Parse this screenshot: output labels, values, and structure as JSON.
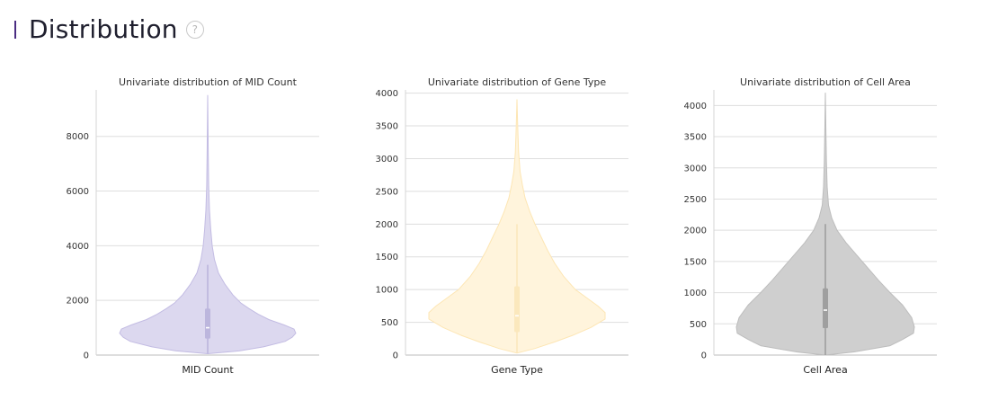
{
  "header": {
    "title": "Distribution",
    "help_glyph": "?",
    "help_icon": "question-circle-icon",
    "accent_color": "#4b2c82"
  },
  "chart_data": [
    {
      "type": "violin",
      "title": "Univariate distribution of MID Count",
      "xlabel": "MID Count",
      "category": "MID Count",
      "ylim": [
        0,
        9700
      ],
      "yticks": [
        0,
        2000,
        4000,
        6000,
        8000
      ],
      "grid": true,
      "fill": "#dcd8ef",
      "stroke": "#c3bce3",
      "box_color": "#bcb6dd",
      "median_color": "#ffffff",
      "stats": {
        "min": 50,
        "q1": 600,
        "median": 1000,
        "q3": 1700,
        "max": 9500,
        "whisker_high": 3300
      },
      "density": [
        [
          50,
          0.0
        ],
        [
          150,
          0.35
        ],
        [
          300,
          0.62
        ],
        [
          500,
          0.86
        ],
        [
          650,
          0.94
        ],
        [
          800,
          0.98
        ],
        [
          950,
          0.96
        ],
        [
          1100,
          0.85
        ],
        [
          1300,
          0.68
        ],
        [
          1500,
          0.56
        ],
        [
          1700,
          0.46
        ],
        [
          1900,
          0.37
        ],
        [
          2200,
          0.28
        ],
        [
          2600,
          0.19
        ],
        [
          3000,
          0.12
        ],
        [
          3500,
          0.075
        ],
        [
          4000,
          0.05
        ],
        [
          4600,
          0.034
        ],
        [
          5300,
          0.02
        ],
        [
          6200,
          0.011
        ],
        [
          7500,
          0.006
        ],
        [
          9500,
          0.0
        ]
      ]
    },
    {
      "type": "violin",
      "title": "Univariate distribution of Gene Type",
      "xlabel": "Gene Type",
      "category": "Gene Type",
      "ylim": [
        0,
        4050
      ],
      "yticks": [
        0,
        500,
        1000,
        1500,
        2000,
        2500,
        3000,
        3500,
        4000
      ],
      "grid": true,
      "fill": "#fff4dc",
      "stroke": "#fde6b4",
      "box_color": "#fbe8bd",
      "median_color": "#ffffff",
      "stats": {
        "min": 30,
        "q1": 350,
        "median": 600,
        "q3": 1050,
        "max": 3900,
        "whisker_high": 2000
      },
      "density": [
        [
          30,
          0.0
        ],
        [
          100,
          0.2
        ],
        [
          200,
          0.42
        ],
        [
          300,
          0.62
        ],
        [
          420,
          0.82
        ],
        [
          550,
          0.98
        ],
        [
          650,
          0.98
        ],
        [
          750,
          0.9
        ],
        [
          850,
          0.8
        ],
        [
          1000,
          0.65
        ],
        [
          1200,
          0.52
        ],
        [
          1400,
          0.42
        ],
        [
          1600,
          0.34
        ],
        [
          1800,
          0.27
        ],
        [
          2000,
          0.2
        ],
        [
          2200,
          0.14
        ],
        [
          2400,
          0.09
        ],
        [
          2600,
          0.06
        ],
        [
          2800,
          0.035
        ],
        [
          3100,
          0.018
        ],
        [
          3500,
          0.008
        ],
        [
          3900,
          0.0
        ]
      ]
    },
    {
      "type": "violin",
      "title": "Univariate distribution of Cell Area",
      "xlabel": "Cell Area",
      "category": "Cell Area",
      "ylim": [
        0,
        4250
      ],
      "yticks": [
        0,
        500,
        1000,
        1500,
        2000,
        2500,
        3000,
        3500,
        4000
      ],
      "grid": true,
      "fill": "#cfcfcf",
      "stroke": "#bdbdbd",
      "box_color": "#9f9f9f",
      "median_color": "#ffffff",
      "stats": {
        "min": 0,
        "q1": 430,
        "median": 720,
        "q3": 1070,
        "max": 4200,
        "whisker_high": 2100
      },
      "density": [
        [
          0,
          0.0
        ],
        [
          50,
          0.32
        ],
        [
          150,
          0.72
        ],
        [
          250,
          0.86
        ],
        [
          350,
          0.98
        ],
        [
          450,
          0.99
        ],
        [
          600,
          0.96
        ],
        [
          800,
          0.86
        ],
        [
          1000,
          0.72
        ],
        [
          1200,
          0.59
        ],
        [
          1400,
          0.47
        ],
        [
          1600,
          0.35
        ],
        [
          1800,
          0.23
        ],
        [
          2000,
          0.13
        ],
        [
          2200,
          0.07
        ],
        [
          2400,
          0.035
        ],
        [
          2700,
          0.02
        ],
        [
          3100,
          0.012
        ],
        [
          3600,
          0.006
        ],
        [
          4200,
          0.0
        ]
      ]
    }
  ]
}
